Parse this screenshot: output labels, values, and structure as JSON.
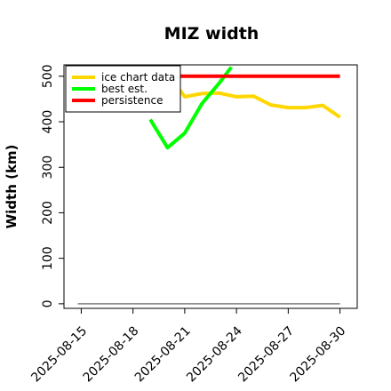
{
  "chart_data": {
    "type": "line",
    "title": "MIZ width",
    "xlabel": "",
    "ylabel": "Width (km)",
    "x_tick_labels": [
      "2025-08-15",
      "2025-08-18",
      "2025-08-21",
      "2025-08-24",
      "2025-08-27",
      "2025-08-30"
    ],
    "y_ticks": [
      0,
      100,
      200,
      300,
      400,
      500
    ],
    "xlim": [
      "2025-08-14",
      "2025-08-31"
    ],
    "ylim": [
      -10,
      525
    ],
    "grid": false,
    "legend_position": "top-left",
    "series": [
      {
        "name": "ice chart data",
        "color": "#FFD700",
        "x": [
          "2025-08-20",
          "2025-08-21",
          "2025-08-22",
          "2025-08-23",
          "2025-08-24",
          "2025-08-25",
          "2025-08-26",
          "2025-08-27",
          "2025-08-28",
          "2025-08-29",
          "2025-08-30"
        ],
        "y": [
          508,
          455,
          462,
          463,
          455,
          456,
          437,
          431,
          431,
          436,
          410
        ]
      },
      {
        "name": "best est.",
        "color": "#00FF00",
        "x": [
          "2025-08-19",
          "2025-08-20",
          "2025-08-21",
          "2025-08-22",
          "2025-08-23",
          "2025-08-23.7"
        ],
        "y": [
          405,
          343,
          375,
          440,
          485,
          520
        ]
      },
      {
        "name": "persistence",
        "color": "#FF0000",
        "x": [
          "2025-08-20",
          "2025-08-30"
        ],
        "y": [
          500,
          500
        ]
      },
      {
        "name": "",
        "color": "#808080",
        "x": [
          "2025-08-14.8",
          "2025-08-30"
        ],
        "y": [
          0,
          0
        ]
      }
    ]
  }
}
